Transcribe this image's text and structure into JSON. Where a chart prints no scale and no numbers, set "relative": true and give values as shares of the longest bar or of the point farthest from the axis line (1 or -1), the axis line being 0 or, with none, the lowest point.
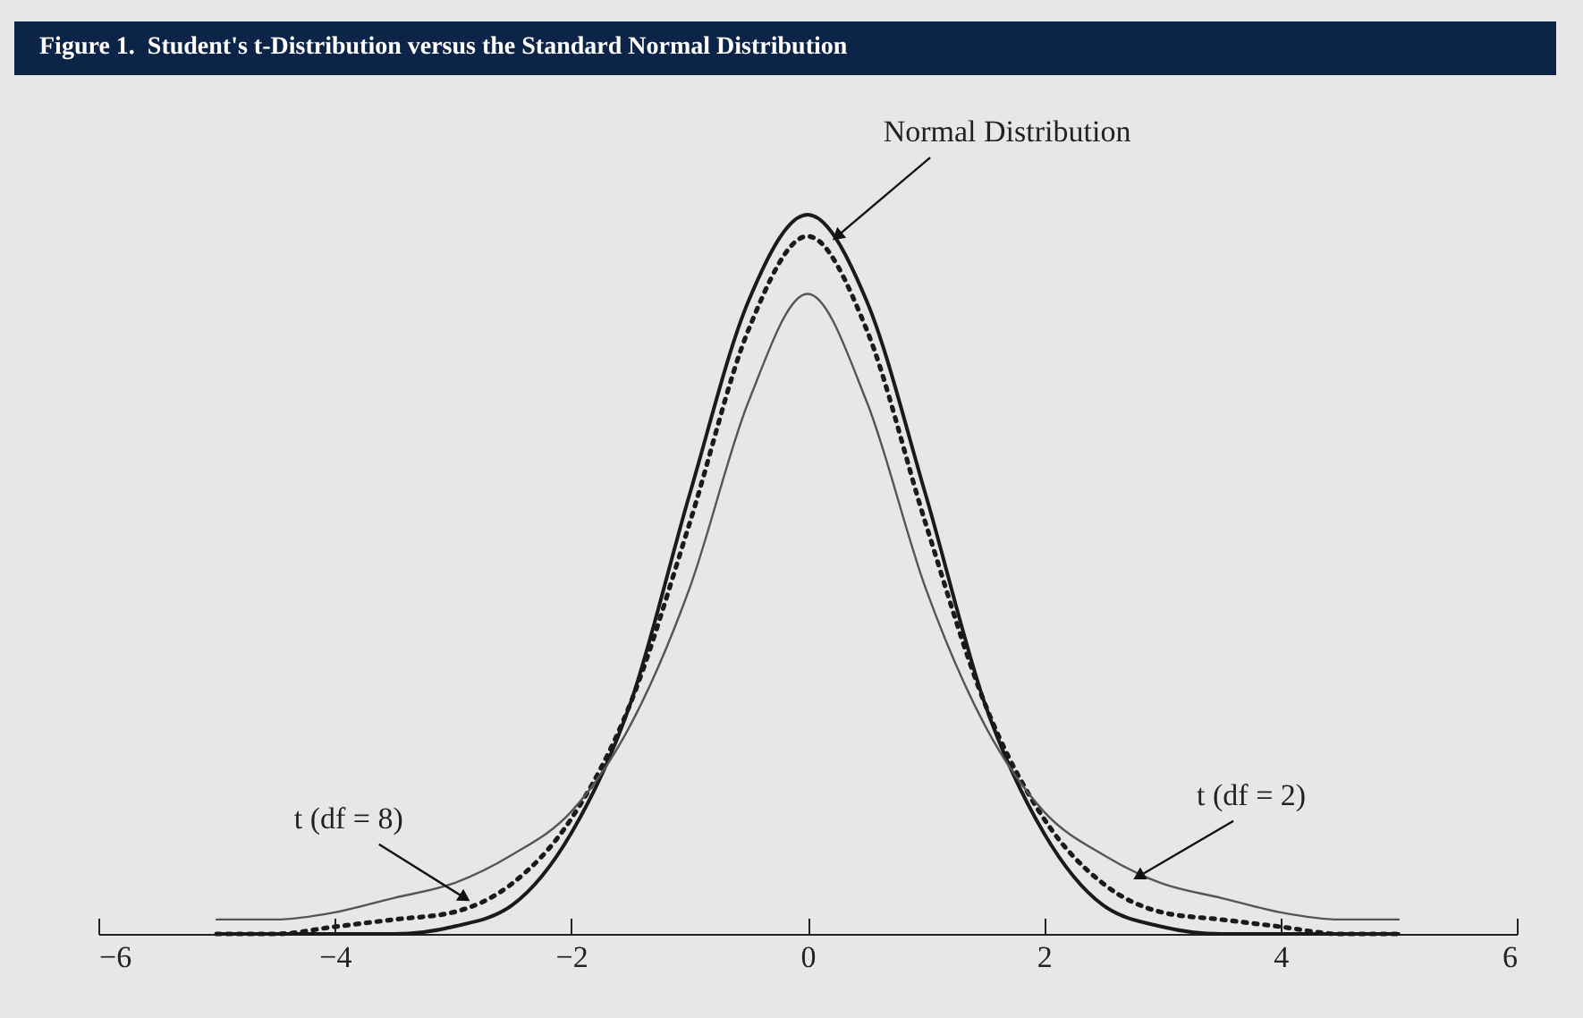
{
  "chart_data": {
    "type": "line",
    "title": "Figure 1.  Student's t-Distribution versus the Standard Normal Distribution",
    "relative": true,
    "x": [
      -5,
      -4.5,
      -4,
      -3.5,
      -3,
      -2.5,
      -2,
      -1.5,
      -1,
      -0.5,
      0,
      0.5,
      1,
      1.5,
      2,
      2.5,
      3,
      3.5,
      4,
      4.5,
      5
    ],
    "series": [
      {
        "color": "#1a1a1a",
        "line_style": "solid",
        "values": [
          0,
          0,
          0,
          0,
          0.01,
          0.04,
          0.14,
          0.32,
          0.61,
          0.88,
          1,
          0.88,
          0.61,
          0.32,
          0.14,
          0.04,
          0.01,
          0,
          0,
          0,
          0
        ]
      },
      {
        "color": "#1a1a1a",
        "line_style": "dotted",
        "values": [
          0,
          0,
          0.01,
          0.02,
          0.03,
          0.07,
          0.16,
          0.32,
          0.57,
          0.84,
          0.97,
          0.84,
          0.57,
          0.32,
          0.16,
          0.07,
          0.03,
          0.02,
          0.01,
          0,
          0
        ]
      },
      {
        "color": "#555555",
        "line_style": "solid",
        "values": [
          0.02,
          0.02,
          0.03,
          0.05,
          0.07,
          0.11,
          0.17,
          0.29,
          0.48,
          0.74,
          0.89,
          0.74,
          0.48,
          0.29,
          0.17,
          0.11,
          0.07,
          0.05,
          0.03,
          0.02,
          0.02
        ]
      }
    ],
    "xlim": [
      -6,
      6
    ],
    "xticks": [
      -6,
      -4,
      -2,
      0,
      2,
      4,
      6
    ],
    "grid": false,
    "annotations": [
      {
        "text": "Normal Distribution",
        "x": 0.25,
        "y": 0.97
      },
      {
        "text": "t (df = 8)",
        "x": -2.9,
        "y": 0.05
      },
      {
        "text": "t (df = 2)",
        "x": 2.8,
        "y": 0.08
      }
    ]
  }
}
